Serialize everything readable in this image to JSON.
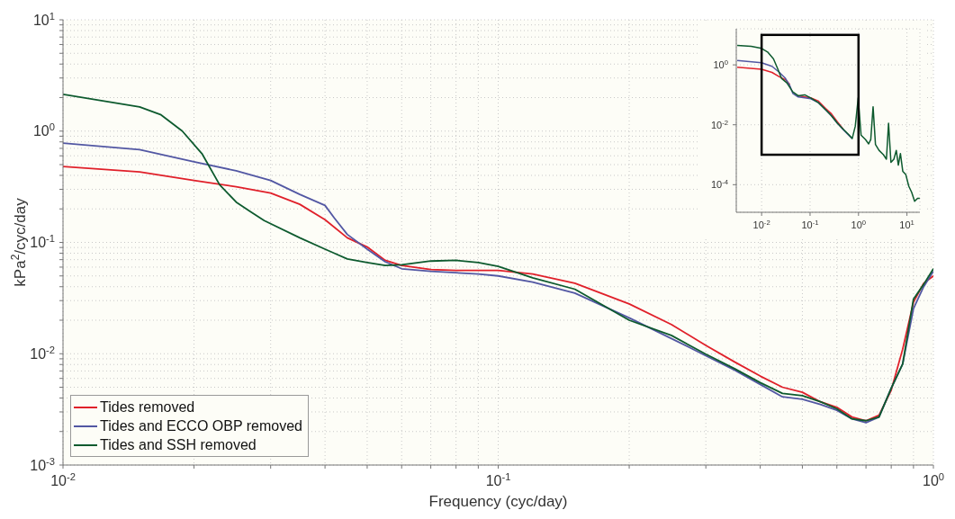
{
  "chart_data": [
    {
      "type": "line",
      "xlabel": "Frequency (cyc/day)",
      "ylabel": "kPa$^{2}$/cyc/day",
      "log": "xy",
      "grid": true,
      "legend": "bottom left",
      "xlim": [
        0.01,
        1
      ],
      "ylim": [
        0.001,
        10
      ],
      "xticks": [
        {
          "value": 0.01,
          "label": "10$^{-2}$"
        },
        {
          "value": 0.02,
          "label": null
        },
        {
          "value": 0.03,
          "label": null
        },
        {
          "value": 0.04,
          "label": null
        },
        {
          "value": 0.05,
          "label": null
        },
        {
          "value": 0.06,
          "label": null
        },
        {
          "value": 0.07,
          "label": null
        },
        {
          "value": 0.08,
          "label": null
        },
        {
          "value": 0.09,
          "label": null
        },
        {
          "value": 0.1,
          "label": "10$^{-1}$"
        },
        {
          "value": 0.2,
          "label": null
        },
        {
          "value": 0.3,
          "label": null
        },
        {
          "value": 0.4,
          "label": null
        },
        {
          "value": 0.5,
          "label": null
        },
        {
          "value": 0.6,
          "label": null
        },
        {
          "value": 0.7,
          "label": null
        },
        {
          "value": 0.8,
          "label": null
        },
        {
          "value": 0.9,
          "label": null
        },
        {
          "value": 1,
          "label": "10$^{0}$"
        }
      ],
      "yticks": [
        {
          "value": 0.001,
          "label": "10$^{-3}$"
        },
        {
          "value": 0.002,
          "label": null
        },
        {
          "value": 0.003,
          "label": null
        },
        {
          "value": 0.004,
          "label": null
        },
        {
          "value": 0.005,
          "label": null
        },
        {
          "value": 0.006,
          "label": null
        },
        {
          "value": 0.007,
          "label": null
        },
        {
          "value": 0.008,
          "label": null
        },
        {
          "value": 0.009,
          "label": null
        },
        {
          "value": 0.01,
          "label": "10$^{-2}$"
        },
        {
          "value": 0.02,
          "label": null
        },
        {
          "value": 0.03,
          "label": null
        },
        {
          "value": 0.04,
          "label": null
        },
        {
          "value": 0.05,
          "label": null
        },
        {
          "value": 0.06,
          "label": null
        },
        {
          "value": 0.07,
          "label": null
        },
        {
          "value": 0.08,
          "label": null
        },
        {
          "value": 0.09,
          "label": null
        },
        {
          "value": 0.1,
          "label": "10$^{-1}$"
        },
        {
          "value": 0.2,
          "label": null
        },
        {
          "value": 0.3,
          "label": null
        },
        {
          "value": 0.4,
          "label": null
        },
        {
          "value": 0.5,
          "label": null
        },
        {
          "value": 0.6,
          "label": null
        },
        {
          "value": 0.7,
          "label": null
        },
        {
          "value": 0.8,
          "label": null
        },
        {
          "value": 0.9,
          "label": null
        },
        {
          "value": 1,
          "label": "10$^{0}$"
        },
        {
          "value": 2,
          "label": null
        },
        {
          "value": 3,
          "label": null
        },
        {
          "value": 4,
          "label": null
        },
        {
          "value": 5,
          "label": null
        },
        {
          "value": 6,
          "label": null
        },
        {
          "value": 7,
          "label": null
        },
        {
          "value": 8,
          "label": null
        },
        {
          "value": 9,
          "label": null
        },
        {
          "value": 10,
          "label": "10$^{1}$"
        }
      ],
      "series": [
        {
          "name": "Tides removed",
          "color": "#e0202a",
          "x": [
            0.01,
            0.015,
            0.02,
            0.025,
            0.03,
            0.035,
            0.04,
            0.045,
            0.05,
            0.055,
            0.06,
            0.07,
            0.08,
            0.1,
            0.12,
            0.15,
            0.2,
            0.25,
            0.3,
            0.35,
            0.4,
            0.45,
            0.5,
            0.55,
            0.6,
            0.65,
            0.7,
            0.75,
            0.8,
            0.85,
            0.9,
            0.95,
            1.0
          ],
          "values": [
            0.48,
            0.43,
            0.36,
            0.316,
            0.278,
            0.22,
            0.16,
            0.11,
            0.091,
            0.069,
            0.062,
            0.057,
            0.056,
            0.056,
            0.052,
            0.043,
            0.028,
            0.0183,
            0.0119,
            0.0084,
            0.0063,
            0.005,
            0.0045,
            0.0037,
            0.0033,
            0.0027,
            0.0025,
            0.0028,
            0.0047,
            0.011,
            0.029,
            0.043,
            0.05
          ]
        },
        {
          "name": "Tides and ECCO OBP removed",
          "color": "#5257a3",
          "x": [
            0.01,
            0.015,
            0.02,
            0.025,
            0.03,
            0.035,
            0.04,
            0.042,
            0.045,
            0.05,
            0.055,
            0.06,
            0.07,
            0.09,
            0.1,
            0.12,
            0.15,
            0.2,
            0.25,
            0.3,
            0.35,
            0.4,
            0.45,
            0.5,
            0.55,
            0.6,
            0.65,
            0.7,
            0.75,
            0.8,
            0.85,
            0.9,
            0.95,
            1.0
          ],
          "values": [
            0.78,
            0.68,
            0.53,
            0.44,
            0.36,
            0.27,
            0.215,
            0.166,
            0.118,
            0.087,
            0.067,
            0.058,
            0.055,
            0.052,
            0.05,
            0.044,
            0.035,
            0.021,
            0.0137,
            0.0096,
            0.0071,
            0.0053,
            0.0041,
            0.0039,
            0.0035,
            0.0031,
            0.0026,
            0.0024,
            0.0027,
            0.0049,
            0.0081,
            0.0254,
            0.04,
            0.055
          ]
        },
        {
          "name": "Tides and SSH removed",
          "color": "#0d5a2e",
          "x": [
            0.01,
            0.015,
            0.0168,
            0.0188,
            0.0209,
            0.0229,
            0.025,
            0.0269,
            0.029,
            0.035,
            0.04,
            0.042,
            0.045,
            0.05,
            0.055,
            0.06,
            0.07,
            0.08,
            0.09,
            0.1,
            0.12,
            0.15,
            0.2,
            0.25,
            0.3,
            0.35,
            0.4,
            0.45,
            0.5,
            0.55,
            0.6,
            0.65,
            0.7,
            0.75,
            0.8,
            0.85,
            0.9,
            0.95,
            1.0
          ],
          "values": [
            2.14,
            1.65,
            1.4,
            1.0,
            0.62,
            0.33,
            0.23,
            0.19,
            0.157,
            0.11,
            0.087,
            0.08,
            0.071,
            0.066,
            0.062,
            0.063,
            0.068,
            0.069,
            0.066,
            0.061,
            0.048,
            0.038,
            0.02,
            0.0146,
            0.0099,
            0.0073,
            0.0055,
            0.0044,
            0.0042,
            0.0037,
            0.0032,
            0.0026,
            0.0025,
            0.0027,
            0.0049,
            0.0081,
            0.031,
            0.042,
            0.058
          ]
        }
      ]
    },
    {
      "type": "line",
      "log": "xy",
      "grid": true,
      "xlim": [
        0.003,
        18.5
      ],
      "ylim": [
        1.2e-05,
        16
      ],
      "xticks": [
        {
          "value": 0.01,
          "label": "10$^{-2}$"
        },
        {
          "value": 0.1,
          "label": "10$^{-1}$"
        },
        {
          "value": 1,
          "label": "10$^{0}$"
        },
        {
          "value": 10,
          "label": "10$^{1}$"
        }
      ],
      "yticks": [
        {
          "value": 0.0001,
          "label": "10$^{-4}$"
        },
        {
          "value": 0.01,
          "label": "10$^{-2}$"
        },
        {
          "value": 1,
          "label": "10$^{0}$"
        }
      ],
      "series": [
        {
          "color": "#e0202a",
          "x": [
            0.00314,
            0.01,
            0.0164,
            0.0233,
            0.031,
            0.0383,
            0.044,
            0.0569,
            0.0776,
            0.103,
            0.146,
            0.209,
            0.277,
            0.367,
            0.486
          ],
          "values": [
            0.83,
            0.71,
            0.56,
            0.4,
            0.32,
            0.22,
            null,
            0.093,
            0.085,
            0.079,
            0.063,
            0.035,
            0.023,
            0.0126,
            0.0071
          ]
        },
        {
          "color": "#5257a3",
          "x": [
            0.00314,
            0.01,
            0.0164,
            0.0233,
            0.031,
            0.0383,
            0.044,
            0.0569,
            0.0776,
            0.103,
            0.146,
            0.209,
            0.277,
            0.367,
            0.486,
            0.645,
            0.743
          ],
          "values": [
            1.41,
            1.17,
            0.89,
            0.56,
            0.355,
            0.2,
            0.112,
            0.085,
            0.079,
            0.074,
            0.056,
            0.0316,
            0.02,
            0.0112,
            0.0068,
            0.0043,
            0.0034
          ]
        },
        {
          "color": "#0d5a2e",
          "x": [
            0.00314,
            0.0061,
            0.01,
            0.0133,
            0.0176,
            0.0217,
            0.0257,
            0.0332,
            0.044,
            0.0569,
            0.0776,
            0.103,
            0.146,
            0.209,
            0.277,
            0.367,
            0.486,
            0.645,
            0.743,
            0.857,
            0.986,
            1.13,
            1.4,
            1.62,
            1.79,
            2.0,
            2.24,
            2.65,
            3.27,
            3.77,
            4.17,
            4.67,
            5.37,
            6.02,
            6.64,
            7.33,
            8.2,
            9.45,
            10.9,
            12.5,
            14.4,
            16.6,
            18.4
          ],
          "values": [
            4.47,
            4.17,
            3.55,
            2.69,
            1.58,
            0.71,
            0.355,
            0.251,
            0.126,
            0.093,
            0.1,
            0.079,
            0.056,
            0.0316,
            0.02,
            0.0112,
            0.0071,
            0.0045,
            0.0035,
            0.0089,
            0.079,
            0.0045,
            0.0032,
            0.0023,
            0.0032,
            0.04,
            0.0022,
            0.0014,
            0.001,
            0.00071,
            0.0112,
            0.00056,
            0.00071,
            0.0014,
            0.00045,
            0.0011,
            0.00028,
            0.00022,
            8.9e-05,
            5.6e-05,
            2.8e-05,
            3.5e-05,
            3.5e-05
          ]
        }
      ]
    }
  ]
}
